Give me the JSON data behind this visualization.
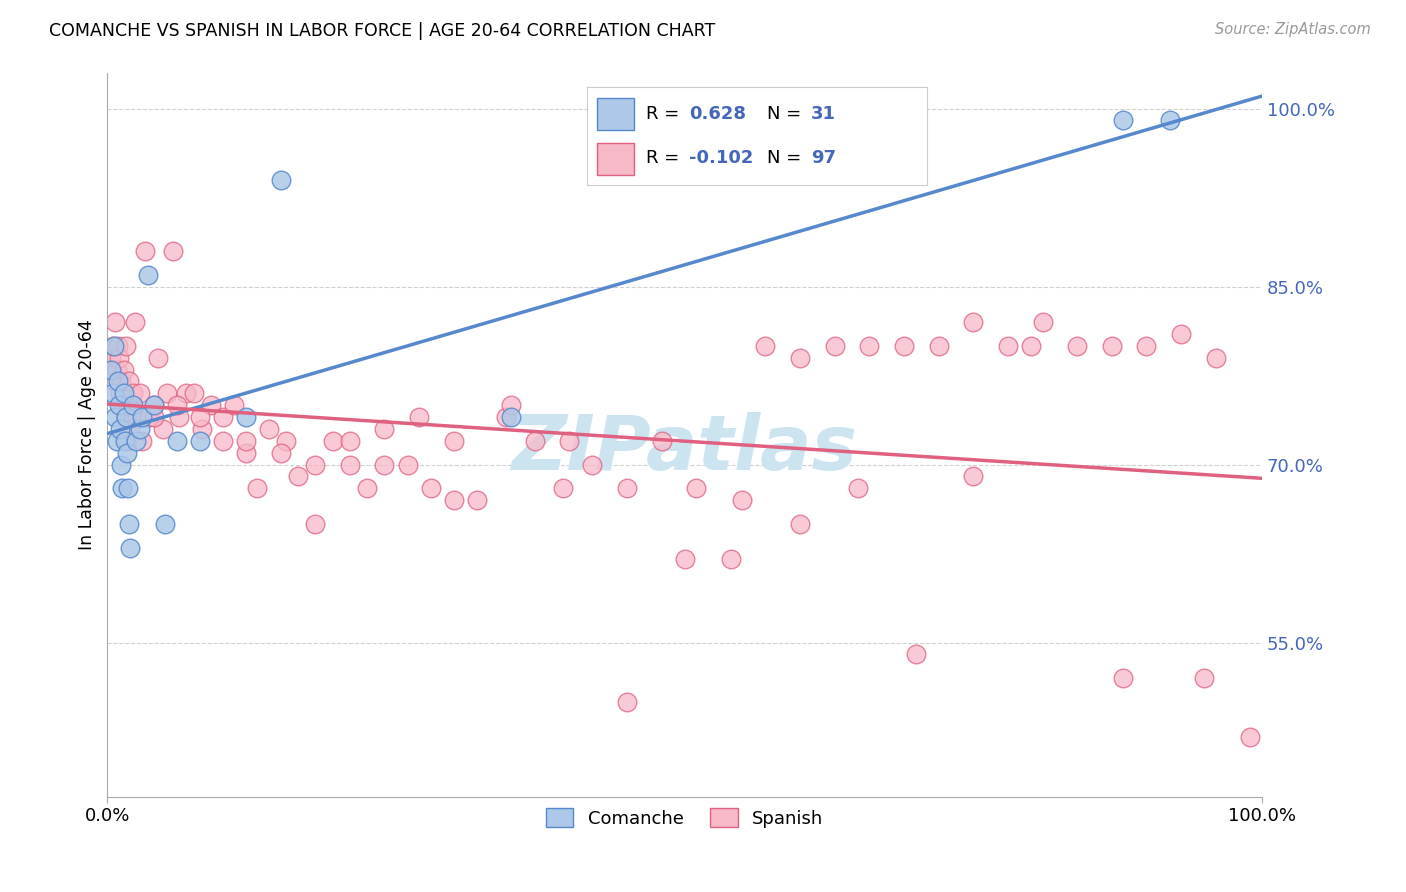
{
  "title": "COMANCHE VS SPANISH IN LABOR FORCE | AGE 20-64 CORRELATION CHART",
  "source": "Source: ZipAtlas.com",
  "ylabel": "In Labor Force | Age 20-64",
  "ytick_labels": [
    "55.0%",
    "70.0%",
    "85.0%",
    "100.0%"
  ],
  "ytick_values": [
    0.55,
    0.7,
    0.85,
    1.0
  ],
  "xlim": [
    0.0,
    1.0
  ],
  "ylim": [
    0.42,
    1.03
  ],
  "comanche_R": "0.628",
  "comanche_N": "31",
  "spanish_R": "-0.102",
  "spanish_N": "97",
  "comanche_color": "#adc8e8",
  "comanche_edge_color": "#5588cc",
  "spanish_color": "#f7b8c8",
  "spanish_edge_color": "#e06080",
  "blue_text_color": "#4466bb",
  "pink_text_color": "#e06080",
  "watermark_color": "#cce4f0",
  "comanche_x": [
    0.003,
    0.005,
    0.006,
    0.007,
    0.008,
    0.009,
    0.01,
    0.011,
    0.012,
    0.013,
    0.014,
    0.015,
    0.016,
    0.017,
    0.018,
    0.019,
    0.02,
    0.022,
    0.025,
    0.028,
    0.03,
    0.035,
    0.04,
    0.05,
    0.06,
    0.08,
    0.12,
    0.15,
    0.35,
    0.88,
    0.92
  ],
  "comanche_y": [
    0.78,
    0.76,
    0.8,
    0.74,
    0.72,
    0.77,
    0.75,
    0.73,
    0.7,
    0.68,
    0.76,
    0.72,
    0.74,
    0.71,
    0.68,
    0.65,
    0.63,
    0.75,
    0.72,
    0.73,
    0.74,
    0.86,
    0.75,
    0.65,
    0.72,
    0.72,
    0.74,
    0.94,
    0.74,
    0.99,
    0.99
  ],
  "spanish_x": [
    0.003,
    0.004,
    0.005,
    0.006,
    0.007,
    0.008,
    0.009,
    0.01,
    0.011,
    0.012,
    0.013,
    0.014,
    0.015,
    0.016,
    0.017,
    0.018,
    0.019,
    0.02,
    0.022,
    0.024,
    0.026,
    0.028,
    0.03,
    0.033,
    0.036,
    0.04,
    0.044,
    0.048,
    0.052,
    0.057,
    0.062,
    0.068,
    0.075,
    0.082,
    0.09,
    0.1,
    0.11,
    0.12,
    0.13,
    0.14,
    0.155,
    0.165,
    0.18,
    0.195,
    0.21,
    0.225,
    0.24,
    0.26,
    0.28,
    0.3,
    0.32,
    0.345,
    0.37,
    0.395,
    0.42,
    0.45,
    0.48,
    0.51,
    0.54,
    0.57,
    0.6,
    0.63,
    0.66,
    0.69,
    0.72,
    0.75,
    0.78,
    0.81,
    0.84,
    0.87,
    0.9,
    0.93,
    0.96,
    0.99,
    0.04,
    0.06,
    0.08,
    0.1,
    0.12,
    0.15,
    0.18,
    0.21,
    0.24,
    0.27,
    0.3,
    0.35,
    0.4,
    0.45,
    0.5,
    0.55,
    0.6,
    0.65,
    0.7,
    0.75,
    0.8,
    0.88,
    0.95
  ],
  "spanish_y": [
    0.79,
    0.78,
    0.8,
    0.77,
    0.82,
    0.78,
    0.8,
    0.79,
    0.76,
    0.77,
    0.75,
    0.78,
    0.74,
    0.8,
    0.72,
    0.75,
    0.77,
    0.73,
    0.76,
    0.82,
    0.74,
    0.76,
    0.72,
    0.88,
    0.74,
    0.75,
    0.79,
    0.73,
    0.76,
    0.88,
    0.74,
    0.76,
    0.76,
    0.73,
    0.75,
    0.74,
    0.75,
    0.71,
    0.68,
    0.73,
    0.72,
    0.69,
    0.65,
    0.72,
    0.7,
    0.68,
    0.73,
    0.7,
    0.68,
    0.72,
    0.67,
    0.74,
    0.72,
    0.68,
    0.7,
    0.5,
    0.72,
    0.68,
    0.62,
    0.8,
    0.79,
    0.8,
    0.8,
    0.8,
    0.8,
    0.69,
    0.8,
    0.82,
    0.8,
    0.8,
    0.8,
    0.81,
    0.79,
    0.47,
    0.74,
    0.75,
    0.74,
    0.72,
    0.72,
    0.71,
    0.7,
    0.72,
    0.7,
    0.74,
    0.67,
    0.75,
    0.72,
    0.68,
    0.62,
    0.67,
    0.65,
    0.68,
    0.54,
    0.82,
    0.8,
    0.52,
    0.52
  ]
}
